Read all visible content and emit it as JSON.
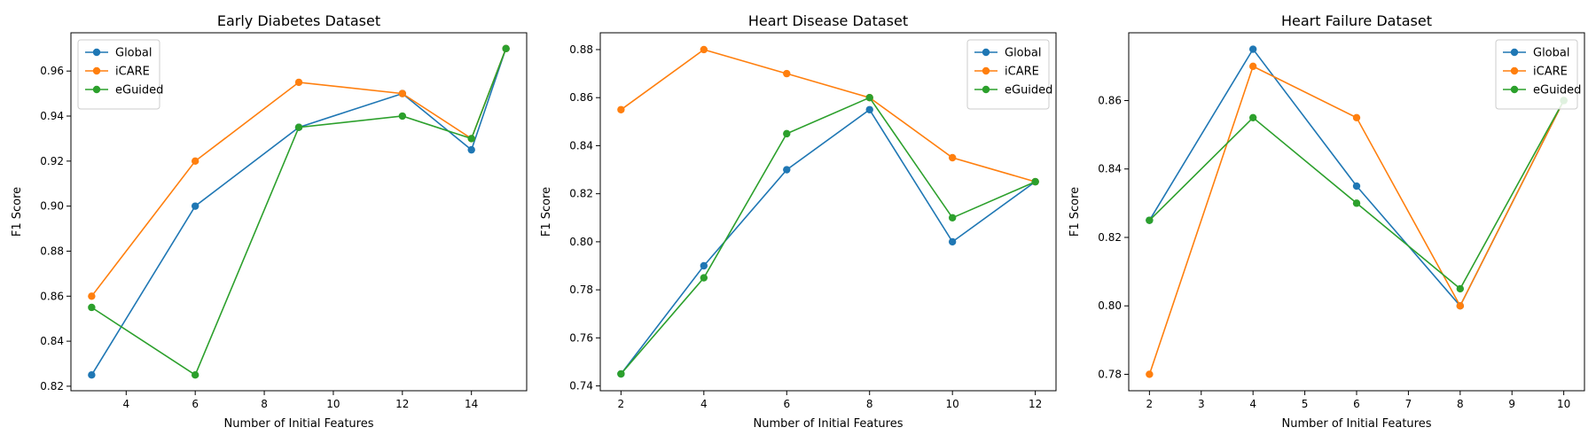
{
  "colors": {
    "Global": "#1f77b4",
    "iCARE": "#ff7f0e",
    "eGuided": "#2ca02c"
  },
  "chart_data": [
    {
      "type": "line",
      "title": "Early Diabetes Dataset",
      "xlabel": "Number of Initial Features",
      "ylabel": "F1 Score",
      "xlim": [
        2.4,
        15.6
      ],
      "ylim": [
        0.818,
        0.977
      ],
      "xticks": [
        4,
        6,
        8,
        10,
        12,
        14
      ],
      "yticks": [
        0.82,
        0.84,
        0.86,
        0.88,
        0.9,
        0.92,
        0.94,
        0.96
      ],
      "ytick_labels": [
        "0.82",
        "0.84",
        "0.86",
        "0.88",
        "0.90",
        "0.92",
        "0.94",
        "0.96"
      ],
      "legend": "top-left",
      "x": [
        3,
        6,
        9,
        12,
        14,
        15
      ],
      "series": [
        {
          "name": "Global",
          "values": [
            0.825,
            0.9,
            0.935,
            0.95,
            0.925,
            0.97
          ]
        },
        {
          "name": "iCARE",
          "values": [
            0.86,
            0.92,
            0.955,
            0.95,
            0.93,
            0.97
          ]
        },
        {
          "name": "eGuided",
          "values": [
            0.855,
            0.825,
            0.935,
            0.94,
            0.93,
            0.97
          ]
        }
      ]
    },
    {
      "type": "line",
      "title": "Heart Disease Dataset",
      "xlabel": "Number of Initial Features",
      "ylabel": "F1 Score",
      "xlim": [
        1.5,
        12.5
      ],
      "ylim": [
        0.738,
        0.887
      ],
      "xticks": [
        2,
        4,
        6,
        8,
        10,
        12
      ],
      "yticks": [
        0.74,
        0.76,
        0.78,
        0.8,
        0.82,
        0.84,
        0.86,
        0.88
      ],
      "ytick_labels": [
        "0.74",
        "0.76",
        "0.78",
        "0.80",
        "0.82",
        "0.84",
        "0.86",
        "0.88"
      ],
      "legend": "top-right",
      "x": [
        2,
        4,
        6,
        8,
        10,
        12
      ],
      "series": [
        {
          "name": "Global",
          "values": [
            0.745,
            0.79,
            0.83,
            0.855,
            0.8,
            0.825
          ]
        },
        {
          "name": "iCARE",
          "values": [
            0.855,
            0.88,
            0.87,
            0.86,
            0.835,
            0.825
          ]
        },
        {
          "name": "eGuided",
          "values": [
            0.745,
            0.785,
            0.845,
            0.86,
            0.81,
            0.825
          ]
        }
      ]
    },
    {
      "type": "line",
      "title": "Heart Failure Dataset",
      "xlabel": "Number of Initial Features",
      "ylabel": "F1 Score",
      "xlim": [
        1.6,
        10.4
      ],
      "ylim": [
        0.7752,
        0.8798
      ],
      "xticks": [
        2,
        3,
        4,
        5,
        6,
        7,
        8,
        9,
        10
      ],
      "yticks": [
        0.78,
        0.8,
        0.82,
        0.84,
        0.86
      ],
      "ytick_labels": [
        "0.78",
        "0.80",
        "0.82",
        "0.84",
        "0.86"
      ],
      "legend": "top-right",
      "x": [
        2,
        4,
        6,
        8,
        10
      ],
      "series": [
        {
          "name": "Global",
          "values": [
            0.825,
            0.875,
            0.835,
            0.8,
            0.86
          ]
        },
        {
          "name": "iCARE",
          "values": [
            0.78,
            0.87,
            0.855,
            0.8,
            0.86
          ]
        },
        {
          "name": "eGuided",
          "values": [
            0.825,
            0.855,
            0.83,
            0.805,
            0.86
          ]
        }
      ]
    }
  ]
}
